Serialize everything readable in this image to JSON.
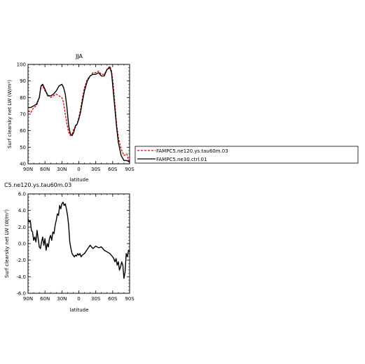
{
  "chart_data": [
    {
      "type": "line",
      "title": "JJA",
      "xlabel": "latitude",
      "ylabel": "Surf clearsky net LW (W/m²)",
      "xlim": [
        -90,
        90
      ],
      "ylim": [
        40,
        100
      ],
      "x_ticks": [
        -90,
        -60,
        -30,
        0,
        30,
        60,
        90
      ],
      "x_tick_labels": [
        "90N",
        "60N",
        "30N",
        "0",
        "30S",
        "60S",
        "90S"
      ],
      "y_ticks": [
        40,
        50,
        60,
        70,
        80,
        90,
        100
      ],
      "y_tick_labels": [
        "40",
        "50",
        "60",
        "70",
        "80",
        "90",
        "100"
      ],
      "legend_position": "right",
      "series": [
        {
          "name": "FAMPC5.ne120.ys.tau60m.03",
          "color": "#e00000",
          "dash": "dashed",
          "x": [
            -90,
            -85,
            -80,
            -75,
            -70,
            -67,
            -64,
            -60,
            -55,
            -50,
            -45,
            -40,
            -35,
            -30,
            -27,
            -24,
            -21,
            -18,
            -15,
            -12,
            -9,
            -6,
            -3,
            0,
            3,
            6,
            10,
            15,
            20,
            25,
            30,
            35,
            40,
            45,
            50,
            55,
            58,
            61,
            64,
            67,
            70,
            75,
            80,
            85,
            90
          ],
          "y": [
            72,
            71,
            74,
            75,
            80,
            87,
            87,
            84,
            82,
            80,
            81,
            82,
            81,
            80,
            77,
            70,
            64,
            59,
            57,
            58,
            61,
            62,
            64,
            68,
            73,
            79,
            86,
            91,
            93,
            95,
            95,
            96,
            94,
            94,
            97,
            99,
            96,
            88,
            76,
            64,
            56,
            49,
            45,
            46,
            40
          ]
        },
        {
          "name": "FAMPC5.ne30.ctrl.01",
          "color": "#000000",
          "dash": "solid",
          "x": [
            -90,
            -85,
            -80,
            -75,
            -70,
            -67,
            -64,
            -60,
            -55,
            -50,
            -45,
            -40,
            -35,
            -30,
            -27,
            -24,
            -21,
            -18,
            -15,
            -12,
            -9,
            -6,
            -3,
            0,
            3,
            6,
            10,
            15,
            20,
            25,
            30,
            35,
            40,
            45,
            50,
            55,
            58,
            61,
            64,
            67,
            70,
            75,
            80,
            85,
            90
          ],
          "y": [
            74,
            74,
            75,
            76,
            80,
            87,
            88,
            85,
            81,
            81,
            82,
            84,
            87,
            88,
            86,
            82,
            74,
            63,
            58,
            57,
            59,
            63,
            64,
            67,
            71,
            77,
            84,
            90,
            93,
            94,
            94,
            95,
            93,
            93,
            97,
            98,
            95,
            84,
            73,
            62,
            53,
            45,
            42,
            42,
            41
          ]
        }
      ]
    },
    {
      "type": "line",
      "title": "C5.ne120.ys.tau60m.03",
      "xlabel": "latitude",
      "ylabel": "Surf clearsky net LW (W/m²)",
      "xlim": [
        -90,
        90
      ],
      "ylim": [
        -6,
        6
      ],
      "x_ticks": [
        -90,
        -60,
        -30,
        0,
        30,
        60,
        90
      ],
      "x_tick_labels": [
        "90N",
        "60N",
        "30N",
        "0",
        "30S",
        "60S",
        "90S"
      ],
      "y_ticks": [
        -6,
        -4,
        -2,
        0,
        2,
        4,
        6
      ],
      "y_tick_labels": [
        "-6.0",
        "-4.0",
        "-2.0",
        "0.0",
        "2.0",
        "4.0",
        "6.0"
      ],
      "series": [
        {
          "color": "#000000",
          "dash": "solid",
          "x": [
            -90,
            -88,
            -86,
            -84,
            -82,
            -80,
            -78,
            -76,
            -74,
            -72,
            -70,
            -68,
            -66,
            -64,
            -62,
            -60,
            -58,
            -56,
            -54,
            -52,
            -50,
            -48,
            -46,
            -44,
            -42,
            -40,
            -38,
            -36,
            -34,
            -32,
            -30,
            -28,
            -26,
            -24,
            -22,
            -20,
            -18,
            -16,
            -14,
            -12,
            -10,
            -8,
            -6,
            -4,
            -2,
            0,
            2,
            4,
            6,
            8,
            10,
            15,
            20,
            25,
            30,
            35,
            40,
            45,
            50,
            55,
            60,
            62,
            64,
            66,
            68,
            70,
            72,
            74,
            76,
            78,
            80,
            82,
            84,
            86,
            88,
            90
          ],
          "y": [
            3.0,
            2.6,
            2.8,
            1.6,
            1.4,
            0.4,
            0.8,
            0.2,
            1.6,
            0.6,
            -0.4,
            -0.6,
            0.2,
            0.8,
            -0.2,
            0.6,
            -0.8,
            0.0,
            -0.4,
            0.6,
            1.0,
            0.4,
            1.4,
            1.2,
            2.2,
            2.8,
            3.6,
            3.4,
            4.6,
            4.2,
            4.8,
            5.0,
            4.6,
            4.8,
            4.2,
            3.4,
            2.2,
            0.2,
            -0.6,
            -1.2,
            -1.4,
            -1.6,
            -1.4,
            -1.5,
            -1.2,
            -1.4,
            -1.2,
            -1.6,
            -1.4,
            -1.3,
            -1.2,
            -0.7,
            -0.2,
            -0.6,
            -0.3,
            -0.5,
            -0.4,
            -0.8,
            -1.0,
            -1.2,
            -1.6,
            -1.8,
            -2.2,
            -1.8,
            -2.6,
            -2.2,
            -3.2,
            -2.8,
            -2.2,
            -2.6,
            -4.2,
            -3.4,
            -1.2,
            -1.6,
            -0.8,
            -1.0
          ]
        }
      ]
    }
  ]
}
